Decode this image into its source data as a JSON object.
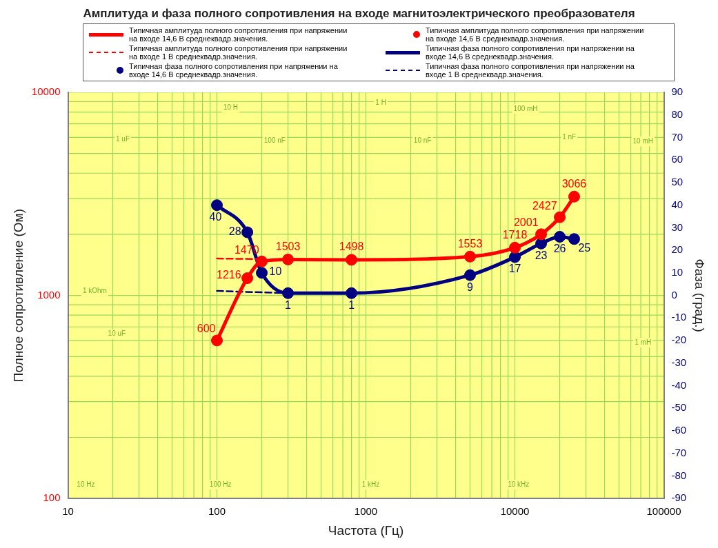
{
  "chart_data": {
    "type": "line",
    "title": "Амплитуда и фаза полного сопротивления на входе магнитоэлектрического преобразователя",
    "xlabel": "Частота (Гц)",
    "ylabel": "Полное сопротивление (Ом)",
    "y2label": "Фаза (град.)",
    "x": [
      100,
      160,
      200,
      300,
      800,
      5000,
      10000,
      15000,
      20000,
      25000
    ],
    "series": [
      {
        "name": "Типичная амплитуда полного сопротивления при напряжении на входе 14,6 В среднеквадр.значения.",
        "marker": "none",
        "line_style": "solid",
        "color": "#ff0000",
        "values": [
          600,
          1216,
          1470,
          1503,
          1498,
          1553,
          1718,
          2001,
          2427,
          3066
        ]
      },
      {
        "name": "Типичная амплитуда полного сопротивления при напряжении на входе 14,6 В среднеквадр.значения.",
        "type": "scatter",
        "marker": "circle",
        "color": "#ff0000",
        "values": [
          600,
          1216,
          1470,
          1503,
          1498,
          1553,
          1718,
          2001,
          2427,
          3066
        ],
        "value_labels": [
          "600",
          "1216",
          "1470",
          "1503",
          "1498",
          "1553",
          "1718",
          "2001",
          "2427",
          "3066"
        ]
      },
      {
        "name": "Типичная амплитуда полного сопротивления при напряжении на входе 1 В среднеквадр.значения.",
        "marker": "none",
        "line_style": "dashed",
        "color": "#ff0000",
        "x": [
          100,
          200
        ],
        "values": [
          1520,
          1510
        ]
      },
      {
        "name": "Типичная фаза полного сопротивления при напряжении на входе 14,6 В среднеквадр.значения.",
        "marker": "none",
        "line_style": "solid",
        "axis": "y2",
        "color": "#000080",
        "values": [
          40,
          28,
          10,
          1,
          1,
          9,
          17,
          23,
          26,
          25
        ]
      },
      {
        "name": "Типичная фаза полного сопротивления при напряжении на входе 14,6 В среднеквадр.значения.",
        "type": "scatter",
        "marker": "circle",
        "axis": "y2",
        "color": "#000080",
        "values": [
          40,
          28,
          10,
          1,
          1,
          9,
          17,
          23,
          26,
          25
        ],
        "value_labels": [
          "40",
          "28",
          "10",
          "1",
          "1",
          "9",
          "17",
          "23",
          "26",
          "25"
        ]
      },
      {
        "name": "Типичная фаза полного сопротивления при напряжении на входе 1 В среднеквадр.значения.",
        "marker": "none",
        "line_style": "dashed",
        "axis": "y2",
        "color": "#000080",
        "x": [
          100,
          300
        ],
        "values": [
          2,
          1
        ]
      }
    ],
    "log": "xy",
    "xlim": [
      10,
      100000
    ],
    "xticks": [
      10,
      100,
      1000,
      10000,
      100000
    ],
    "ylim": [
      100,
      10000
    ],
    "yticks": [
      100,
      1000,
      10000
    ],
    "y2lim": [
      -90,
      90
    ],
    "y2ticks": [
      -90,
      -80,
      -70,
      -60,
      -50,
      -40,
      -30,
      -20,
      -10,
      0,
      10,
      20,
      30,
      40,
      50,
      60,
      70,
      80,
      90
    ],
    "grid": true,
    "legend": "top",
    "annotations": [
      "10 H",
      "1 uF",
      "100 nF",
      "1 H",
      "100 mH",
      "10 nF",
      "1 nF",
      "10 mH",
      "1 kOhm",
      "10 uF",
      "1 mH",
      "10 Hz",
      "100 Hz",
      "1 kHz",
      "10 kHz"
    ]
  }
}
